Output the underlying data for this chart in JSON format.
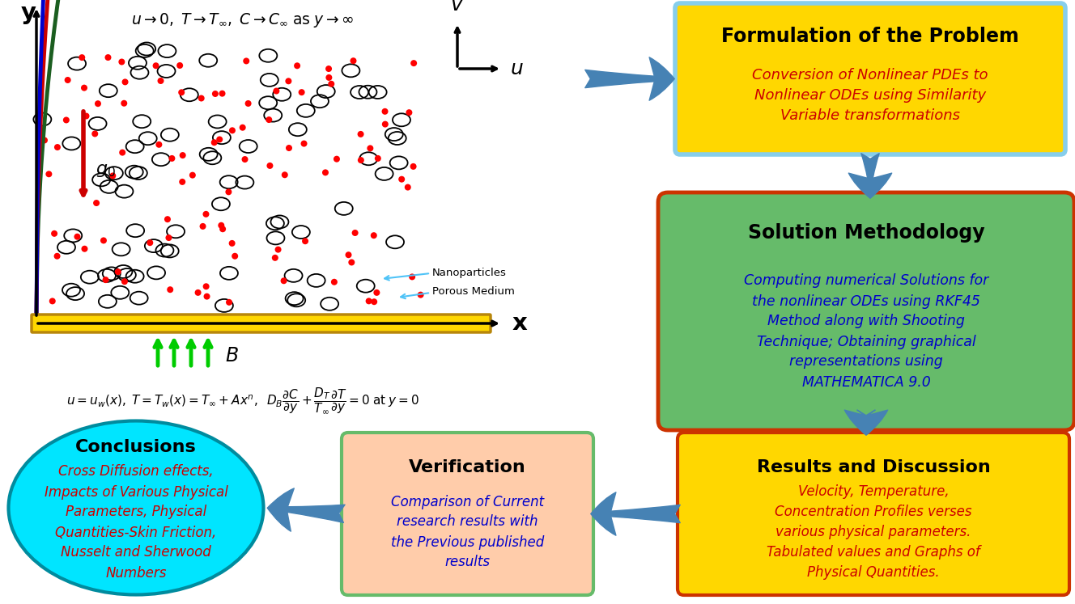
{
  "bg_color": "#ffffff",
  "fig_width": 13.28,
  "fig_height": 7.47,
  "box1_title": "Formulation of the Problem",
  "box1_body": "Conversion of Nonlinear PDEs to\nNonlinear ODEs using Similarity\nVariable transformations",
  "box1_bg": "#FFD700",
  "box1_border": "#87CEEB",
  "box1_title_color": "#000000",
  "box1_body_color": "#CC0000",
  "box2_title": "Solution Methodology",
  "box2_body": "Computing numerical Solutions for\nthe nonlinear ODEs using RKF45\nMethod along with Shooting\nTechnique; Obtaining graphical\nrepresentations using\nMATHEMATICA 9.0",
  "box2_bg": "#66BB6A",
  "box2_border": "#CC3300",
  "box2_title_color": "#000000",
  "box2_body_color": "#0000CC",
  "box3_title": "Results and Discussion",
  "box3_body": "Velocity, Temperature,\nConcentration Profiles verses\nvarious physical parameters.\nTabulated values and Graphs of\nPhysical Quantities.",
  "box3_bg": "#FFD700",
  "box3_border": "#CC3300",
  "box3_title_color": "#000000",
  "box3_body_color": "#CC0000",
  "box4_title": "Verification",
  "box4_body": "Comparison of Current\nresearch results with\nthe Previous published\nresults",
  "box4_bg": "#FFCCAA",
  "box4_border": "#66BB6A",
  "box4_title_color": "#000000",
  "box4_body_color": "#0000CC",
  "ellipse_title": "Conclusions",
  "ellipse_body": "Cross Diffusion effects,\nImpacts of Various Physical\nParameters, Physical\nQuantities-Skin Friction,\nNusselt and Sherwood\nNumbers",
  "ellipse_bg": "#00E5FF",
  "ellipse_border": "#008B9E",
  "ellipse_title_color": "#000000",
  "ellipse_body_color": "#CC0000",
  "arrow_color": "#4682B4",
  "arrow_fill": "#4682B4"
}
